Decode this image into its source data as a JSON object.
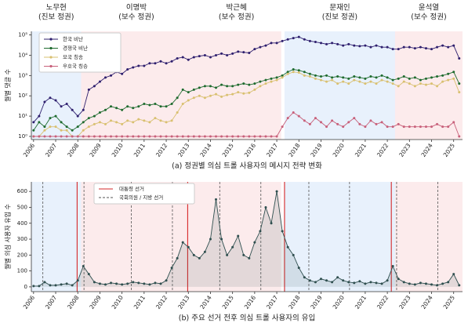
{
  "chart_data": [
    {
      "type": "line",
      "log_y": true,
      "caption": "(a) 정권별 의심 트롤 사용자의 메시지 전략 변화",
      "ylabel": "월별 댓글 수",
      "regimes": [
        {
          "name": "노무현",
          "party": "(진보 정권)",
          "start": 2005.9,
          "end": 2008.15,
          "color": "#e8f1fc"
        },
        {
          "name": "이명박",
          "party": "(보수 정권)",
          "start": 2008.15,
          "end": 2013.15,
          "color": "#fcebec"
        },
        {
          "name": "박근혜",
          "party": "(보수 정권)",
          "start": 2013.15,
          "end": 2017.2,
          "color": "#fcebec"
        },
        {
          "name": "문재인",
          "party": "(진보 정권)",
          "start": 2017.35,
          "end": 2022.35,
          "color": "#e8f1fc"
        },
        {
          "name": "윤석열",
          "party": "(보수 정권)",
          "start": 2022.35,
          "end": 2025.4,
          "color": "#fcebec"
        }
      ],
      "x": [
        2006,
        2006.25,
        2006.5,
        2006.75,
        2007,
        2007.25,
        2007.5,
        2007.75,
        2008,
        2008.25,
        2008.5,
        2008.75,
        2009,
        2009.25,
        2009.5,
        2009.75,
        2010,
        2010.25,
        2010.5,
        2010.75,
        2011,
        2011.25,
        2011.5,
        2011.75,
        2012,
        2012.25,
        2012.5,
        2012.75,
        2013,
        2013.25,
        2013.5,
        2013.75,
        2014,
        2014.25,
        2014.5,
        2014.75,
        2015,
        2015.25,
        2015.5,
        2015.75,
        2016,
        2016.25,
        2016.5,
        2016.75,
        2017,
        2017.25,
        2017.5,
        2017.75,
        2018,
        2018.25,
        2018.5,
        2018.75,
        2019,
        2019.25,
        2019.5,
        2019.75,
        2020,
        2020.25,
        2020.5,
        2020.75,
        2021,
        2021.25,
        2021.5,
        2021.75,
        2022,
        2022.25,
        2022.5,
        2022.75,
        2023,
        2023.25,
        2023.5,
        2023.75,
        2024,
        2024.25,
        2024.5,
        2024.75,
        2025,
        2025.25
      ],
      "xlim": [
        2005.9,
        2025.4
      ],
      "xticks": [
        2006,
        2007,
        2008,
        2009,
        2010,
        2011,
        2012,
        2013,
        2014,
        2015,
        2016,
        2017,
        2018,
        2019,
        2020,
        2021,
        2022,
        2023,
        2024,
        2025
      ],
      "ylim": [
        0.7,
        150000
      ],
      "yticks": [
        {
          "value": 1,
          "label": "10⁰"
        },
        {
          "value": 10,
          "label": "10¹"
        },
        {
          "value": 100,
          "label": "10²"
        },
        {
          "value": 1000,
          "label": "10³"
        },
        {
          "value": 10000,
          "label": "10⁴"
        },
        {
          "value": 100000,
          "label": "10⁵"
        }
      ],
      "series": [
        {
          "name": "한국 비난",
          "color": "#2e1f6e",
          "values": [
            5,
            10,
            50,
            80,
            60,
            30,
            40,
            20,
            10,
            20,
            200,
            300,
            500,
            800,
            1000,
            1500,
            1200,
            2000,
            2500,
            3000,
            3000,
            4000,
            4000,
            5000,
            4000,
            5000,
            7000,
            8000,
            6000,
            8000,
            9000,
            10000,
            8000,
            10000,
            12000,
            10000,
            12000,
            15000,
            14000,
            13000,
            20000,
            25000,
            30000,
            40000,
            40000,
            50000,
            60000,
            70000,
            80000,
            60000,
            50000,
            45000,
            40000,
            35000,
            40000,
            35000,
            30000,
            35000,
            30000,
            28000,
            30000,
            25000,
            30000,
            25000,
            25000,
            20000,
            20000,
            25000,
            25000,
            22000,
            25000,
            22000,
            20000,
            25000,
            30000,
            25000,
            30000,
            7000
          ]
        },
        {
          "name": "경쟁국 비난",
          "color": "#1e6b2e",
          "values": [
            2,
            5,
            3,
            8,
            10,
            5,
            3,
            2,
            3,
            5,
            8,
            10,
            15,
            20,
            30,
            25,
            20,
            30,
            25,
            30,
            40,
            35,
            40,
            30,
            30,
            40,
            80,
            200,
            150,
            200,
            250,
            300,
            300,
            250,
            350,
            300,
            300,
            350,
            400,
            350,
            400,
            500,
            600,
            700,
            800,
            1000,
            1500,
            2000,
            1800,
            1500,
            1200,
            1000,
            900,
            1000,
            800,
            900,
            800,
            700,
            900,
            800,
            700,
            900,
            800,
            1000,
            800,
            600,
            700,
            900,
            700,
            800,
            600,
            700,
            800,
            900,
            1000,
            1200,
            1500,
            400
          ]
        },
        {
          "name": "모국 칭송",
          "color": "#d9c070",
          "values": [
            1,
            1,
            2,
            3,
            3,
            2,
            2,
            1,
            1,
            2,
            3,
            4,
            5,
            4,
            6,
            5,
            4,
            6,
            5,
            7,
            6,
            5,
            8,
            6,
            5,
            6,
            15,
            40,
            60,
            80,
            100,
            80,
            100,
            120,
            90,
            110,
            120,
            150,
            130,
            140,
            200,
            300,
            400,
            500,
            600,
            800,
            1200,
            1500,
            1400,
            1000,
            900,
            700,
            600,
            500,
            600,
            400,
            500,
            400,
            600,
            500,
            400,
            500,
            400,
            600,
            500,
            400,
            300,
            500,
            400,
            300,
            400,
            350,
            400,
            300,
            500,
            600,
            700,
            150
          ]
        },
        {
          "name": "우호국 칭송",
          "color": "#c8607a",
          "values": [
            1,
            1,
            1,
            1,
            1,
            1,
            1,
            1,
            1,
            1,
            1,
            1,
            1,
            1,
            1,
            1,
            1,
            1,
            1,
            1,
            1,
            1,
            1,
            1,
            1,
            1,
            1,
            1,
            1,
            1,
            1,
            1,
            1,
            1,
            1,
            1,
            1,
            1,
            1,
            1,
            1,
            1,
            1,
            1,
            1,
            3,
            8,
            15,
            10,
            6,
            4,
            8,
            5,
            3,
            6,
            4,
            3,
            5,
            8,
            4,
            3,
            6,
            4,
            5,
            3,
            3,
            4,
            3,
            3,
            3,
            3,
            3,
            3,
            4,
            3,
            3,
            5,
            1
          ]
        }
      ]
    },
    {
      "type": "line",
      "area": true,
      "caption": "(b) 주요 선거 전후 의심 트롤 사용자의 유입",
      "ylabel": "월별 의심 사용자 유입 수",
      "color": "#2f4f4f",
      "x": [
        2006,
        2006.25,
        2006.5,
        2006.75,
        2007,
        2007.25,
        2007.5,
        2007.75,
        2008,
        2008.25,
        2008.5,
        2008.75,
        2009,
        2009.25,
        2009.5,
        2009.75,
        2010,
        2010.25,
        2010.5,
        2010.75,
        2011,
        2011.25,
        2011.5,
        2011.75,
        2012,
        2012.25,
        2012.5,
        2012.75,
        2013,
        2013.25,
        2013.5,
        2013.75,
        2014,
        2014.25,
        2014.5,
        2014.75,
        2015,
        2015.25,
        2015.5,
        2015.75,
        2016,
        2016.25,
        2016.5,
        2016.75,
        2017,
        2017.25,
        2017.5,
        2017.75,
        2018,
        2018.25,
        2018.5,
        2018.75,
        2019,
        2019.25,
        2019.5,
        2019.75,
        2020,
        2020.25,
        2020.5,
        2020.75,
        2021,
        2021.25,
        2021.5,
        2021.75,
        2022,
        2022.25,
        2022.5,
        2022.75,
        2023,
        2023.25,
        2023.5,
        2023.75,
        2024,
        2024.25,
        2024.5,
        2024.75,
        2025,
        2025.25
      ],
      "values": [
        5,
        5,
        30,
        10,
        10,
        15,
        20,
        10,
        40,
        130,
        80,
        30,
        20,
        15,
        25,
        20,
        15,
        20,
        30,
        25,
        20,
        15,
        25,
        20,
        40,
        120,
        180,
        280,
        250,
        200,
        180,
        220,
        300,
        550,
        300,
        200,
        250,
        320,
        200,
        180,
        280,
        350,
        500,
        400,
        600,
        350,
        250,
        200,
        120,
        60,
        40,
        30,
        50,
        40,
        30,
        60,
        40,
        30,
        25,
        35,
        20,
        30,
        25,
        20,
        40,
        130,
        50,
        30,
        20,
        15,
        25,
        20,
        15,
        10,
        20,
        30,
        80,
        10
      ],
      "xlim": [
        2005.9,
        2025.4
      ],
      "xticks": [
        2006,
        2007,
        2008,
        2009,
        2010,
        2011,
        2012,
        2013,
        2014,
        2015,
        2016,
        2017,
        2018,
        2019,
        2020,
        2021,
        2022,
        2023,
        2024,
        2025
      ],
      "ylim": [
        -30,
        660
      ],
      "yticks": [
        0,
        100,
        200,
        300,
        400,
        500,
        600
      ],
      "reference_lines": [
        {
          "name": "대통령 선거",
          "color": "#d62728",
          "dashed": false,
          "x": [
            2007.97,
            2012.97,
            2017.35,
            2022.18
          ]
        },
        {
          "name": "국회의원 / 지방 선거",
          "color": "#555555",
          "dashed": true,
          "x": [
            2006.42,
            2008.28,
            2010.42,
            2012.28,
            2014.42,
            2016.28,
            2018.45,
            2020.29,
            2022.42,
            2024.28
          ]
        }
      ]
    }
  ]
}
